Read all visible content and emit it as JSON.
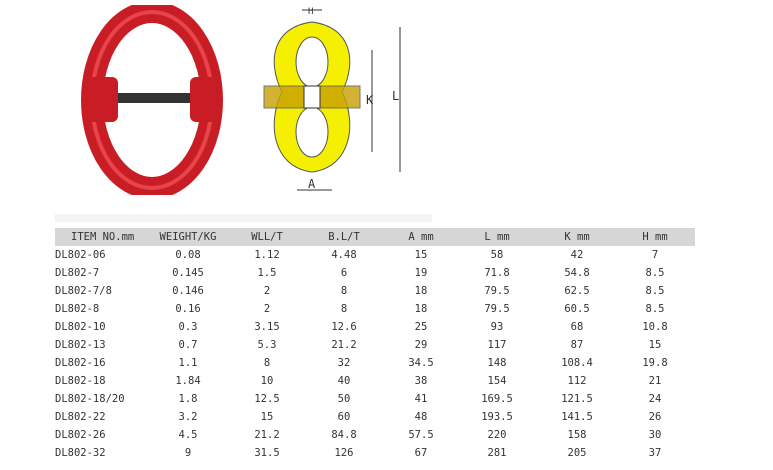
{
  "table": {
    "headers": [
      "ITEM NO.mm",
      "WEIGHT/KG",
      "WLL/T",
      "B.L/T",
      "A mm",
      "L mm",
      "K mm",
      "H mm"
    ],
    "rows": [
      [
        "DL802-06",
        "0.08",
        "1.12",
        "4.48",
        "15",
        "58",
        "42",
        "7"
      ],
      [
        "DL802-7",
        "0.145",
        "1.5",
        "6",
        "19",
        "71.8",
        "54.8",
        "8.5"
      ],
      [
        "DL802-7/8",
        "0.146",
        "2",
        "8",
        "18",
        "79.5",
        "62.5",
        "8.5"
      ],
      [
        "DL802-8",
        "0.16",
        "2",
        "8",
        "18",
        "79.5",
        "60.5",
        "8.5"
      ],
      [
        "DL802-10",
        "0.3",
        "3.15",
        "12.6",
        "25",
        "93",
        "68",
        "10.8"
      ],
      [
        "DL802-13",
        "0.7",
        "5.3",
        "21.2",
        "29",
        "117",
        "87",
        "15"
      ],
      [
        "DL802-16",
        "1.1",
        "8",
        "32",
        "34.5",
        "148",
        "108.4",
        "19.8"
      ],
      [
        "DL802-18",
        "1.84",
        "10",
        "40",
        "38",
        "154",
        "112",
        "21"
      ],
      [
        "DL802-18/20",
        "1.8",
        "12.5",
        "50",
        "41",
        "169.5",
        "121.5",
        "24"
      ],
      [
        "DL802-22",
        "3.2",
        "15",
        "60",
        "48",
        "193.5",
        "141.5",
        "26"
      ],
      [
        "DL802-26",
        "4.5",
        "21.2",
        "84.8",
        "57.5",
        "220",
        "158",
        "30"
      ],
      [
        "DL802-32",
        "9",
        "31.5",
        "126",
        "67",
        "281",
        "205",
        "37"
      ]
    ]
  },
  "diagram": {
    "labels": [
      "H",
      "K",
      "L",
      "A"
    ]
  },
  "colors": {
    "connector": "#d0202a",
    "diagram_fill": "#f5f000",
    "header_bg": "#d6d6d6"
  }
}
